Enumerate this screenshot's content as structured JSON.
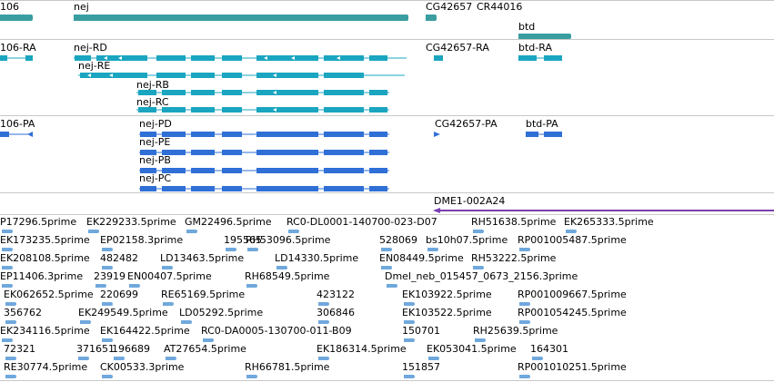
{
  "colors": {
    "gene": "#3a9ea0",
    "mrna": "#1aa5c0",
    "protein": "#2f6fd6",
    "clone": "#7b3fb0",
    "est": "#6fa8dc",
    "separator": "#c8c8c8"
  },
  "tracks": {
    "gene": {
      "labels": [
        "106",
        "nej",
        "CG42657",
        "CR44016",
        "btd"
      ]
    },
    "mrna": {
      "labels": [
        "106-RA",
        "nej-RD",
        "nej-RE",
        "nej-RB",
        "nej-RC",
        "CG42657-RA",
        "btd-RA"
      ]
    },
    "protein": {
      "labels": [
        "106-PA",
        "nej-PD",
        "nej-PE",
        "nej-PB",
        "nej-PC",
        "CG42657-PA",
        "btd-PA"
      ]
    },
    "clone": {
      "labels": [
        "DME1-002A24"
      ]
    },
    "est": {
      "rows": [
        [
          "P17296.5prime",
          "EK229233.5prime",
          "GM22496.5prime",
          "RC0-DL0001-140700-023-D07",
          "RH51638.5prime",
          "EK265333.5prime"
        ],
        [
          "EK173235.5prime",
          "EP02158.3prime",
          "195565",
          "RH53096.5prime",
          "528069",
          "bs10h07.5prime",
          "RP001005487.5prime"
        ],
        [
          "EK208108.5prime",
          "482482",
          "LD13463.5prime",
          "LD14330.5prime",
          "EN08449.5prime",
          "RH53222.5prime"
        ],
        [
          "EP11406.3prime",
          "23919",
          "EN00407.5prime",
          "RH68549.5prime",
          "Dmel_neb_015457_0673_2156.3prime"
        ],
        [
          "EK062652.5prime",
          "220699",
          "RE65169.5prime",
          "423122",
          "EK103922.5prime",
          "RP001009667.5prime"
        ],
        [
          "356762",
          "EK249549.5prime",
          "LD05292.5prime",
          "306846",
          "EK103522.5prime",
          "RP001054245.5prime"
        ],
        [
          "EK234116.5prime",
          "EK164422.5prime",
          "RC0-DA0005-130700-011-B09",
          "150701",
          "RH25639.5prime"
        ],
        [
          "72321",
          "371651",
          "196689",
          "AT27654.5prime",
          "EK186314.5prime",
          "EK053041.5prime",
          "164301"
        ],
        [
          "RE30774.5prime",
          "CK00533.3prime",
          "RH66781.5prime",
          "151857",
          "RP001010251.5prime"
        ]
      ]
    }
  }
}
